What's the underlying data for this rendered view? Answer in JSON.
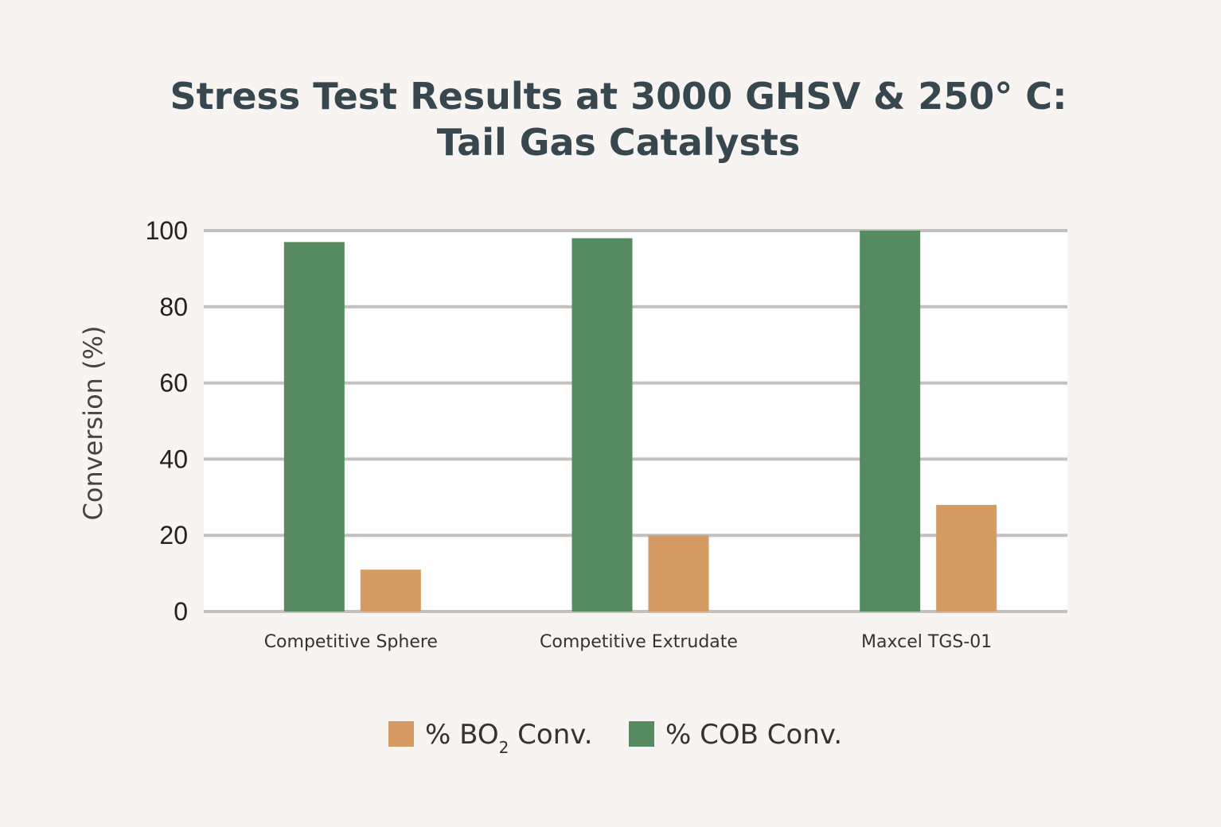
{
  "chart_data": {
    "type": "bar",
    "title_lines": [
      "Stress Test Results at 3000 GHSV & 250° C:",
      "Tail Gas Catalysts"
    ],
    "ylabel": "Conversion (%)",
    "xlabel": "",
    "ylim": [
      0,
      100
    ],
    "yticks": [
      "0",
      "20",
      "40",
      "60",
      "80",
      "100"
    ],
    "grid": true,
    "legend_position": "bottom",
    "categories": [
      "Competitive Sphere",
      "Competitive Extrudate",
      "Maxcel TGS-01"
    ],
    "series": [
      {
        "name": "% COB Conv.",
        "color": "#568a61",
        "values": [
          97,
          98,
          100
        ]
      },
      {
        "name": "% BO2 Conv.",
        "color": "#d49b65",
        "values": [
          11,
          20,
          28
        ]
      }
    ],
    "legend": [
      {
        "prefix": "% BO",
        "sub": "2",
        "suffix": " Conv.",
        "color": "#d49b65"
      },
      {
        "prefix": "% COB Conv.",
        "sub": "",
        "suffix": "",
        "color": "#568a61"
      }
    ]
  }
}
